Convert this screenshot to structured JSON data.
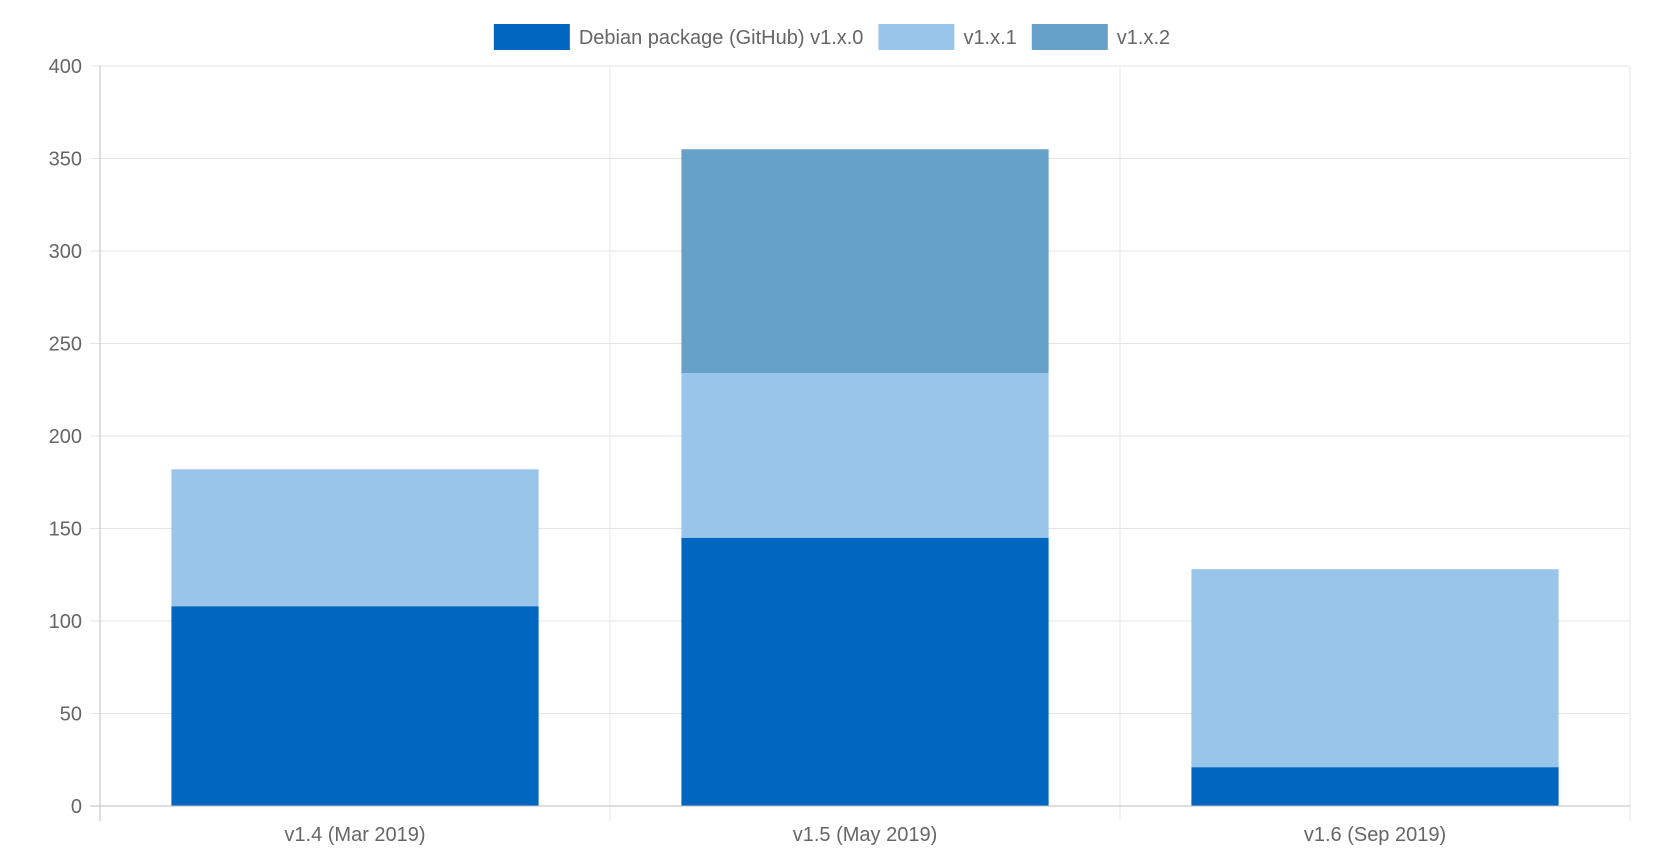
{
  "chart_data": {
    "type": "bar",
    "stacked": true,
    "categories": [
      "v1.4 (Mar 2019)",
      "v1.5 (May 2019)",
      "v1.6 (Sep 2019)"
    ],
    "series": [
      {
        "name": "Debian package (GitHub) v1.x.0",
        "values": [
          108,
          145,
          21
        ],
        "color": "#0066c0"
      },
      {
        "name": "v1.x.1",
        "values": [
          74,
          89,
          107
        ],
        "color": "#99c5ea"
      },
      {
        "name": "v1.x.2",
        "values": [
          0,
          121,
          0
        ],
        "color": "#65a1c8"
      }
    ],
    "ylim": [
      0,
      400
    ],
    "yticks": [
      0,
      50,
      100,
      150,
      200,
      250,
      300,
      350,
      400
    ],
    "grid": true,
    "legend": "top-center"
  }
}
